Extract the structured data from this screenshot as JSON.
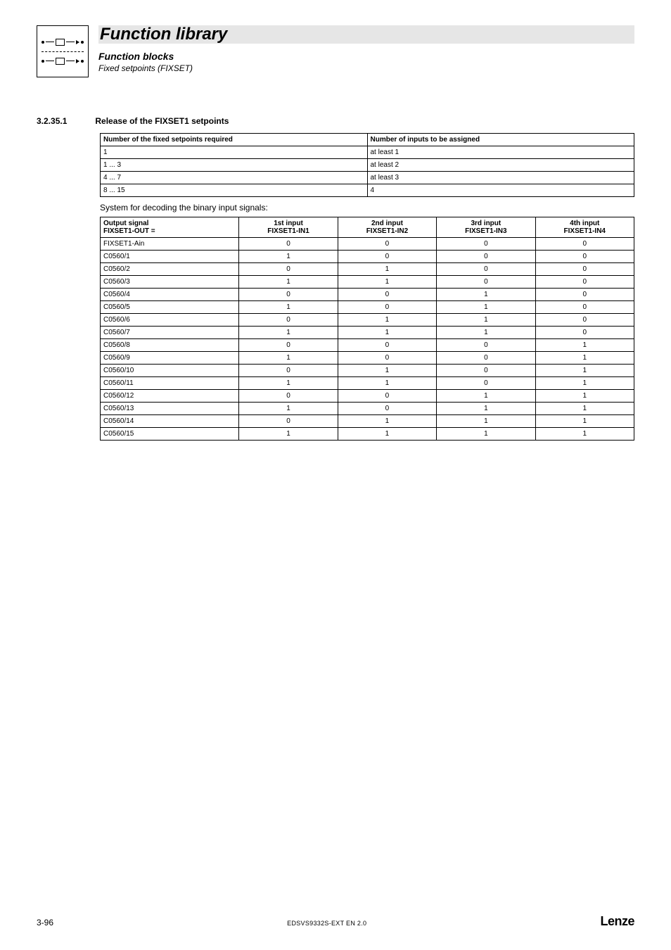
{
  "header": {
    "title": "Function library",
    "subtitle": "Function blocks",
    "subsubtitle": "Fixed setpoints (FIXSET)"
  },
  "section": {
    "number": "3.2.35.1",
    "title": "Release of the FIXSET1 setpoints"
  },
  "table1": {
    "columns": [
      "Number of the fixed setpoints required",
      "Number of  inputs to be assigned"
    ],
    "rows": [
      [
        "1",
        "at least 1"
      ],
      [
        "1 ... 3",
        "at least 2"
      ],
      [
        "4 ... 7",
        "at least 3"
      ],
      [
        "8 ... 15",
        "4"
      ]
    ],
    "border_color": "#000000",
    "header_fontweight": "bold",
    "fontsize": 10
  },
  "decode_text": "System for decoding the binary input signals:",
  "table2": {
    "columns": [
      "Output signal\nFIXSET1-OUT =",
      "1st input\nFIXSET1-IN1",
      "2nd input\nFIXSET1-IN2",
      "3rd input\nFIXSET1-IN3",
      "4th input\nFIXSET1-IN4"
    ],
    "rows": [
      [
        "FIXSET1-Ain",
        "0",
        "0",
        "0",
        "0"
      ],
      [
        "C0560/1",
        "1",
        "0",
        "0",
        "0"
      ],
      [
        "C0560/2",
        "0",
        "1",
        "0",
        "0"
      ],
      [
        "C0560/3",
        "1",
        "1",
        "0",
        "0"
      ],
      [
        "C0560/4",
        "0",
        "0",
        "1",
        "0"
      ],
      [
        "C0560/5",
        "1",
        "0",
        "1",
        "0"
      ],
      [
        "C0560/6",
        "0",
        "1",
        "1",
        "0"
      ],
      [
        "C0560/7",
        "1",
        "1",
        "1",
        "0"
      ],
      [
        "C0560/8",
        "0",
        "0",
        "0",
        "1"
      ],
      [
        "C0560/9",
        "1",
        "0",
        "0",
        "1"
      ],
      [
        "C0560/10",
        "0",
        "1",
        "0",
        "1"
      ],
      [
        "C0560/11",
        "1",
        "1",
        "0",
        "1"
      ],
      [
        "C0560/12",
        "0",
        "0",
        "1",
        "1"
      ],
      [
        "C0560/13",
        "1",
        "0",
        "1",
        "1"
      ],
      [
        "C0560/14",
        "0",
        "1",
        "1",
        "1"
      ],
      [
        "C0560/15",
        "1",
        "1",
        "1",
        "1"
      ]
    ],
    "border_color": "#000000",
    "header_fontweight": "bold",
    "fontsize": 10
  },
  "footer": {
    "page": "3-96",
    "doc_id": "EDSVS9332S-EXT EN 2.0",
    "brand": "Lenze"
  },
  "colors": {
    "background": "#ffffff",
    "text": "#000000",
    "title_band": "#e6e6e6",
    "border": "#000000"
  }
}
